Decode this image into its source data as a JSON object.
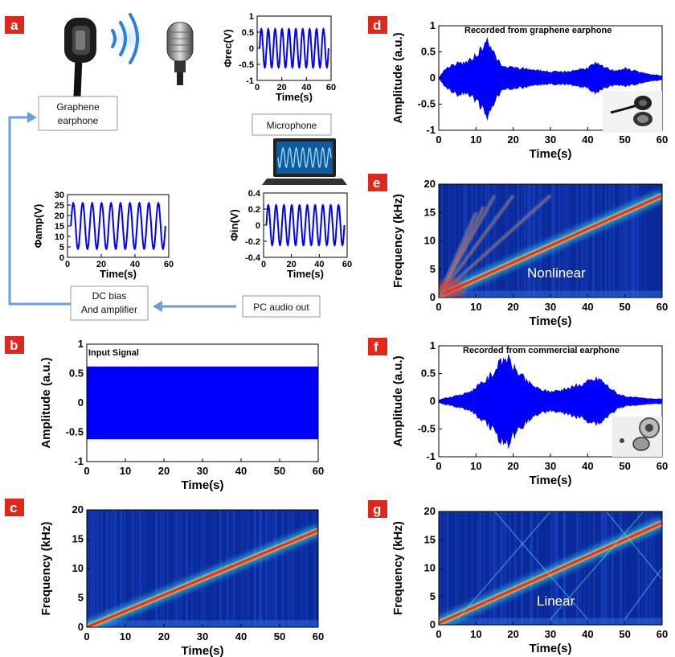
{
  "colors": {
    "signal_blue": "#0000ff",
    "panel_red": "#e0271c",
    "arrow_blue": "#6a9fd8",
    "spec_bg": "#0a2a9a"
  },
  "panel_a": {
    "letter": "a",
    "boxes": {
      "graphene_earphone": [
        "Graphene",
        "earphone"
      ],
      "microphone": "Microphone",
      "pc_audio_out": "PC audio out",
      "dc_bias": [
        "DC bias",
        "And amplifier"
      ]
    },
    "icons": [
      "earphone-icon",
      "sound-wave-icon",
      "microphone-icon",
      "laptop-icon"
    ]
  },
  "panel_b": {
    "letter": "b",
    "note": "Input Signal"
  },
  "panel_c": {
    "letter": "c"
  },
  "panel_d": {
    "letter": "d",
    "note": "Recorded from graphene earphone"
  },
  "panel_e": {
    "letter": "e",
    "overlay": "Nonlinear"
  },
  "panel_f": {
    "letter": "f",
    "note": "Recorded from commercial earphone"
  },
  "panel_g": {
    "letter": "g",
    "overlay": "Linear"
  },
  "chart_data": [
    {
      "id": "a_rec",
      "type": "line",
      "ylabel": "Φrec(V)",
      "xlabel": "Time(s)",
      "xlim": [
        0,
        60
      ],
      "ylim": [
        -1,
        1
      ],
      "xticks": [
        0,
        20,
        40,
        60
      ],
      "yticks": [
        1,
        0.5,
        0,
        -0.5,
        -1
      ],
      "ytick_labels": [
        "1",
        "0.5",
        "0",
        "-0.5",
        "-1"
      ],
      "series": [
        {
          "type": "sine",
          "amplitude": 0.6,
          "offset": 0,
          "cycles": 10,
          "x_end": 58
        }
      ]
    },
    {
      "id": "a_in",
      "type": "line",
      "ylabel": "Φin(V)",
      "xlabel": "Time(s)",
      "xlim": [
        0,
        60
      ],
      "ylim": [
        -0.4,
        0.4
      ],
      "xticks": [
        0,
        20,
        40,
        60
      ],
      "yticks": [
        0.4,
        0.2,
        0,
        -0.2,
        -0.4
      ],
      "ytick_labels": [
        "0.4",
        "0.2",
        "0",
        "-0.2",
        "-0.4"
      ],
      "series": [
        {
          "type": "sine",
          "amplitude": 0.25,
          "offset": 0,
          "cycles": 10,
          "x_end": 58
        }
      ]
    },
    {
      "id": "a_amp",
      "type": "line",
      "ylabel": "Φamp(V)",
      "xlabel": "Time(s)",
      "xlim": [
        0,
        60
      ],
      "ylim": [
        0,
        30
      ],
      "xticks": [
        0,
        20,
        40,
        60
      ],
      "yticks": [
        30,
        25,
        20,
        15,
        10,
        5,
        0
      ],
      "ytick_labels": [
        "30",
        "25",
        "20",
        "15",
        "10",
        "5",
        "0"
      ],
      "series": [
        {
          "type": "sine",
          "amplitude": 11,
          "offset": 15,
          "cycles": 10,
          "x_end": 58
        }
      ]
    },
    {
      "id": "b",
      "type": "area",
      "ylabel": "Amplitude (a.u.)",
      "xlabel": "Time(s)",
      "xlim": [
        0,
        60
      ],
      "ylim": [
        -1,
        1
      ],
      "xticks": [
        0,
        10,
        20,
        30,
        40,
        50,
        60
      ],
      "yticks": [
        1,
        0.5,
        0,
        -0.5,
        -1
      ],
      "ytick_labels": [
        "1",
        "0.5",
        "0",
        "-0.5",
        "-1"
      ],
      "envelope": {
        "x": [
          0,
          60
        ],
        "upper": [
          0.62,
          0.62
        ],
        "lower": [
          -0.62,
          -0.62
        ]
      }
    },
    {
      "id": "c",
      "type": "heatmap",
      "ylabel": "Frequency (kHz)",
      "xlabel": "Time(s)",
      "xlim": [
        0,
        60
      ],
      "ylim": [
        0,
        20
      ],
      "xticks": [
        0,
        10,
        20,
        30,
        40,
        50,
        60
      ],
      "yticks": [
        0,
        5,
        10,
        15,
        20
      ],
      "ytick_labels": [
        "0",
        "5",
        "10",
        "15",
        "20"
      ],
      "ridges": [
        {
          "x": [
            0,
            60
          ],
          "y": [
            0,
            16.5
          ]
        }
      ]
    },
    {
      "id": "d",
      "type": "area",
      "ylabel": "Amplitude (a.u.)",
      "xlabel": "Time(s)",
      "xlim": [
        0,
        60
      ],
      "ylim": [
        -1,
        1
      ],
      "xticks": [
        0,
        10,
        20,
        30,
        40,
        50,
        60
      ],
      "yticks": [
        1,
        0.5,
        0,
        -0.5,
        -1
      ],
      "ytick_labels": [
        "1",
        "0.5",
        "0",
        "-0.5",
        "-1"
      ],
      "envelope": {
        "x": [
          0,
          2,
          5,
          8,
          10,
          12,
          13.5,
          15,
          17,
          20,
          23,
          26,
          30,
          34,
          37,
          40,
          42,
          44,
          47,
          50,
          53,
          56,
          60
        ],
        "upper": [
          0.01,
          0.2,
          0.28,
          0.32,
          0.45,
          0.62,
          0.72,
          0.45,
          0.22,
          0.2,
          0.18,
          0.16,
          0.12,
          0.12,
          0.16,
          0.2,
          0.28,
          0.22,
          0.15,
          0.18,
          0.14,
          0.08,
          0.05
        ],
        "lower": [
          -0.01,
          -0.2,
          -0.32,
          -0.3,
          -0.45,
          -0.62,
          -0.76,
          -0.45,
          -0.22,
          -0.2,
          -0.18,
          -0.14,
          -0.12,
          -0.12,
          -0.16,
          -0.2,
          -0.28,
          -0.2,
          -0.15,
          -0.15,
          -0.13,
          -0.07,
          -0.04
        ]
      }
    },
    {
      "id": "e",
      "type": "heatmap",
      "ylabel": "Frequency (kHz)",
      "xlabel": "Time(s)",
      "xlim": [
        0,
        60
      ],
      "ylim": [
        0,
        20
      ],
      "xticks": [
        0,
        10,
        20,
        30,
        40,
        50,
        60
      ],
      "yticks": [
        0,
        5,
        10,
        15,
        20
      ],
      "ytick_labels": [
        "0",
        "5",
        "10",
        "15",
        "20"
      ],
      "ridges": [
        {
          "x": [
            0,
            60
          ],
          "y": [
            0.3,
            18
          ]
        },
        {
          "x": [
            0,
            30
          ],
          "y": [
            0.3,
            18
          ]
        },
        {
          "x": [
            0,
            20
          ],
          "y": [
            0.3,
            18
          ]
        },
        {
          "x": [
            0,
            15
          ],
          "y": [
            0.3,
            18
          ]
        },
        {
          "x": [
            0,
            12
          ],
          "y": [
            0.3,
            16
          ]
        },
        {
          "x": [
            0,
            10
          ],
          "y": [
            0.3,
            15
          ]
        }
      ]
    },
    {
      "id": "f",
      "type": "area",
      "ylabel": "Amplitude (a.u.)",
      "xlabel": "Time(s)",
      "xlim": [
        0,
        60
      ],
      "ylim": [
        -1,
        1
      ],
      "xticks": [
        0,
        10,
        20,
        30,
        40,
        50,
        60
      ],
      "yticks": [
        1,
        0.5,
        0,
        -0.5,
        -1
      ],
      "ytick_labels": [
        "1",
        "0.5",
        "0",
        "-0.5",
        "-1"
      ],
      "envelope": {
        "x": [
          0,
          3,
          6,
          9,
          12,
          15,
          18,
          21,
          24,
          27,
          30,
          34,
          38,
          41,
          43,
          45,
          48,
          51,
          55,
          60
        ],
        "upper": [
          0.03,
          0.08,
          0.12,
          0.2,
          0.35,
          0.55,
          0.82,
          0.55,
          0.35,
          0.22,
          0.18,
          0.22,
          0.3,
          0.38,
          0.42,
          0.3,
          0.14,
          0.08,
          0.06,
          0.04
        ],
        "lower": [
          -0.03,
          -0.08,
          -0.12,
          -0.2,
          -0.35,
          -0.55,
          -0.82,
          -0.55,
          -0.35,
          -0.22,
          -0.18,
          -0.22,
          -0.3,
          -0.38,
          -0.42,
          -0.3,
          -0.14,
          -0.08,
          -0.06,
          -0.04
        ]
      }
    },
    {
      "id": "g",
      "type": "heatmap",
      "ylabel": "Frequency (kHz)",
      "xlabel": "Time(s)",
      "xlim": [
        0,
        60
      ],
      "ylim": [
        0,
        20
      ],
      "xticks": [
        0,
        10,
        20,
        30,
        40,
        50,
        60
      ],
      "yticks": [
        0,
        5,
        10,
        15,
        20
      ],
      "ytick_labels": [
        "0",
        "5",
        "10",
        "15",
        "20"
      ],
      "ridges": [
        {
          "x": [
            0,
            60
          ],
          "y": [
            0.3,
            18
          ]
        }
      ]
    }
  ]
}
